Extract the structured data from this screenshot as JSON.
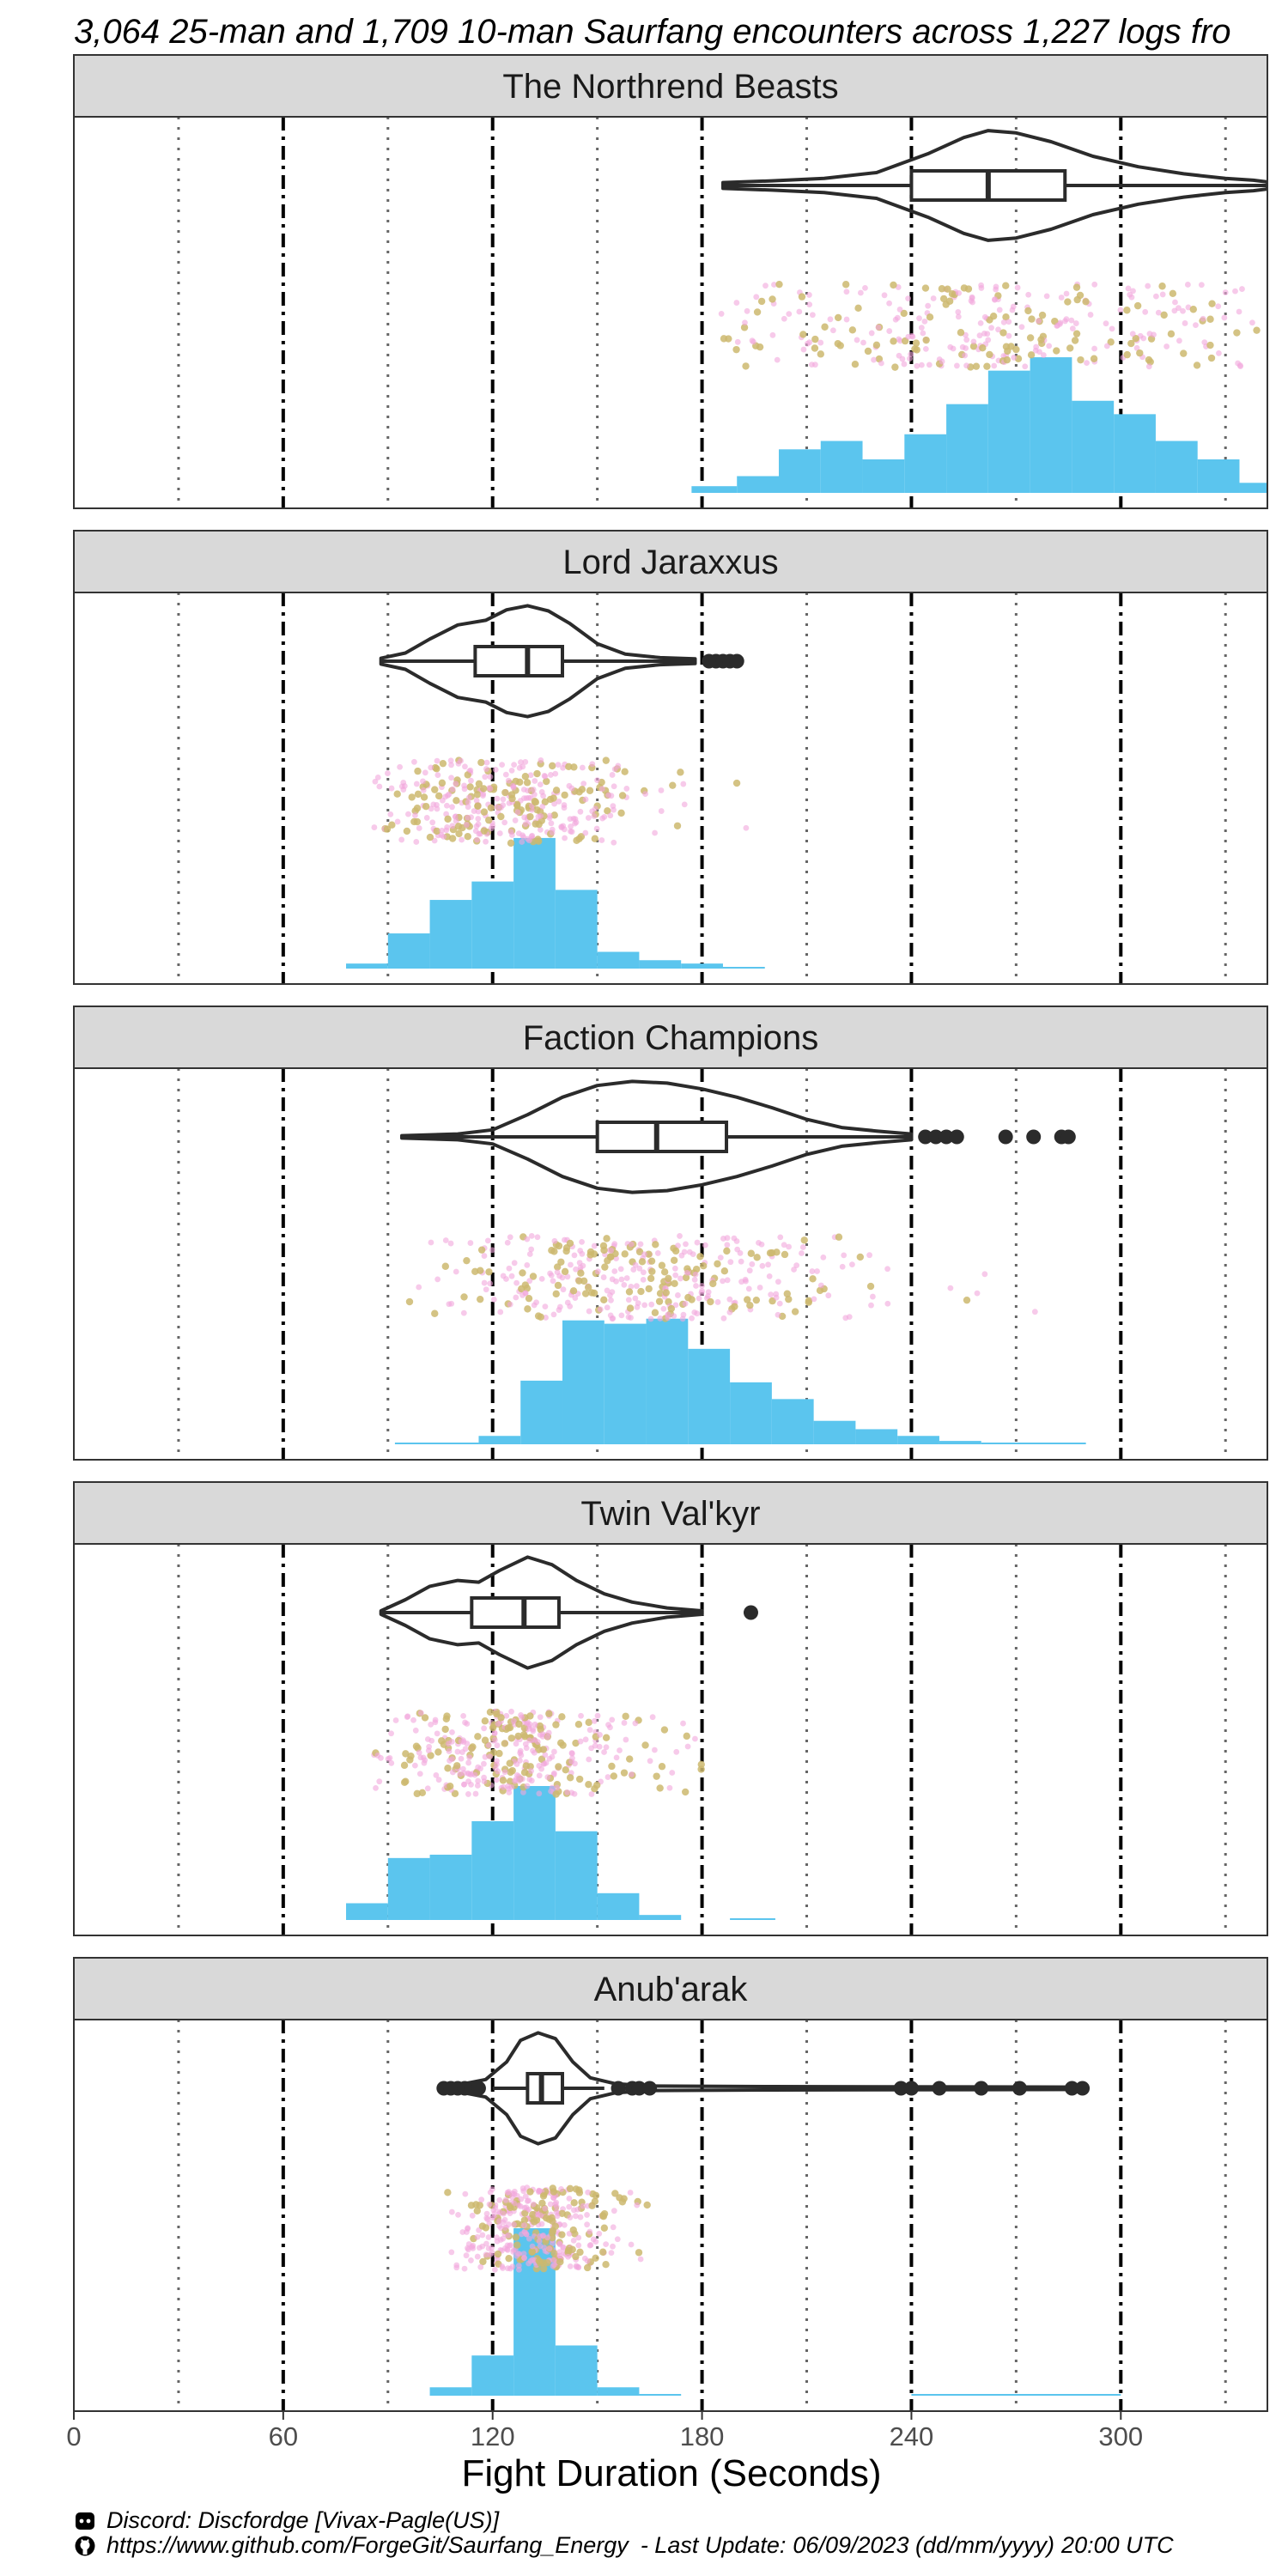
{
  "chart_data": {
    "type": "faceted-distribution",
    "title": "3,064 25-man and 1,709 10-man Saurfang encounters across 1,227 logs fro",
    "xlabel": "Fight Duration (Seconds)",
    "xlim": [
      0,
      342
    ],
    "x_ticks": [
      0,
      60,
      120,
      180,
      240,
      300
    ],
    "vlines_dashed": [
      60,
      120,
      180,
      240,
      300
    ],
    "vlines_dotted": [
      30,
      90,
      150,
      210,
      270,
      330
    ],
    "colors": {
      "histogram": "#5bc5ee",
      "jitter_25man": "#ccb86f",
      "jitter_10man": "#f2a7dc",
      "outline": "#2b2b2b",
      "strip": "#d9d9d9"
    },
    "facets": [
      {
        "name": "The Northrend Beasts",
        "hist": [
          [
            177,
            190,
            0.04
          ],
          [
            190,
            202,
            0.1
          ],
          [
            202,
            214,
            0.26
          ],
          [
            214,
            226,
            0.31
          ],
          [
            226,
            238,
            0.2
          ],
          [
            238,
            250,
            0.35
          ],
          [
            250,
            262,
            0.53
          ],
          [
            262,
            274,
            0.73
          ],
          [
            274,
            286,
            0.81
          ],
          [
            286,
            298,
            0.55
          ],
          [
            298,
            310,
            0.47
          ],
          [
            310,
            322,
            0.31
          ],
          [
            322,
            334,
            0.2
          ],
          [
            334,
            346,
            0.06
          ],
          [
            346,
            358,
            0.04
          ]
        ],
        "box": {
          "min": 186,
          "q1": 240,
          "median": 262,
          "q3": 284,
          "max": 342
        },
        "outliers": [],
        "violin": [
          [
            186,
            0.05
          ],
          [
            200,
            0.08
          ],
          [
            215,
            0.12
          ],
          [
            230,
            0.22
          ],
          [
            245,
            0.55
          ],
          [
            255,
            0.82
          ],
          [
            262,
            0.94
          ],
          [
            270,
            0.9
          ],
          [
            280,
            0.75
          ],
          [
            292,
            0.5
          ],
          [
            305,
            0.32
          ],
          [
            318,
            0.2
          ],
          [
            330,
            0.12
          ],
          [
            338,
            0.09
          ],
          [
            342,
            0.06
          ]
        ],
        "jitter_range": [
          185,
          342
        ],
        "jitter_peak": 258,
        "jitter_spread": 42,
        "jitter_n": 320
      },
      {
        "name": "Lord Jaraxxus",
        "hist": [
          [
            78,
            90,
            0.03
          ],
          [
            90,
            102,
            0.21
          ],
          [
            102,
            114,
            0.41
          ],
          [
            114,
            126,
            0.52
          ],
          [
            126,
            138,
            0.78
          ],
          [
            138,
            150,
            0.47
          ],
          [
            150,
            162,
            0.1
          ],
          [
            162,
            174,
            0.05
          ],
          [
            174,
            186,
            0.03
          ],
          [
            186,
            198,
            0.01
          ]
        ],
        "box": {
          "min": 88,
          "q1": 115,
          "median": 130,
          "q3": 140,
          "max": 178
        },
        "outliers": [
          182,
          184,
          186,
          188,
          190
        ],
        "violin": [
          [
            88,
            0.05
          ],
          [
            95,
            0.14
          ],
          [
            102,
            0.38
          ],
          [
            110,
            0.62
          ],
          [
            118,
            0.7
          ],
          [
            124,
            0.88
          ],
          [
            130,
            0.95
          ],
          [
            136,
            0.86
          ],
          [
            142,
            0.65
          ],
          [
            150,
            0.3
          ],
          [
            158,
            0.12
          ],
          [
            168,
            0.06
          ],
          [
            178,
            0.04
          ]
        ],
        "jitter_range": [
          86,
          195
        ],
        "jitter_peak": 124,
        "jitter_spread": 20,
        "jitter_n": 380
      },
      {
        "name": "Faction Champions",
        "hist": [
          [
            92,
            116,
            0.01
          ],
          [
            116,
            128,
            0.05
          ],
          [
            128,
            140,
            0.38
          ],
          [
            140,
            152,
            0.74
          ],
          [
            152,
            164,
            0.72
          ],
          [
            164,
            176,
            0.75
          ],
          [
            176,
            188,
            0.57
          ],
          [
            188,
            200,
            0.37
          ],
          [
            200,
            212,
            0.27
          ],
          [
            212,
            224,
            0.14
          ],
          [
            224,
            236,
            0.09
          ],
          [
            236,
            248,
            0.05
          ],
          [
            248,
            260,
            0.02
          ],
          [
            260,
            290,
            0.01
          ]
        ],
        "box": {
          "min": 94,
          "q1": 150,
          "median": 167,
          "q3": 187,
          "max": 240
        },
        "outliers": [
          244,
          247,
          250,
          253,
          267,
          275,
          283,
          285
        ],
        "violin": [
          [
            94,
            0.02
          ],
          [
            110,
            0.05
          ],
          [
            120,
            0.12
          ],
          [
            130,
            0.38
          ],
          [
            140,
            0.68
          ],
          [
            150,
            0.88
          ],
          [
            160,
            0.95
          ],
          [
            170,
            0.92
          ],
          [
            180,
            0.82
          ],
          [
            190,
            0.68
          ],
          [
            200,
            0.5
          ],
          [
            210,
            0.3
          ],
          [
            220,
            0.16
          ],
          [
            230,
            0.1
          ],
          [
            240,
            0.05
          ]
        ],
        "jitter_range": [
          95,
          285
        ],
        "jitter_peak": 162,
        "jitter_spread": 30,
        "jitter_n": 380
      },
      {
        "name": "Twin Val'kyr",
        "hist": [
          [
            78,
            90,
            0.1
          ],
          [
            90,
            102,
            0.37
          ],
          [
            102,
            114,
            0.39
          ],
          [
            114,
            126,
            0.59
          ],
          [
            126,
            138,
            0.8
          ],
          [
            138,
            150,
            0.53
          ],
          [
            150,
            162,
            0.16
          ],
          [
            162,
            174,
            0.03
          ],
          [
            188,
            201,
            0.01
          ]
        ],
        "box": {
          "min": 88,
          "q1": 114,
          "median": 129,
          "q3": 139,
          "max": 180
        },
        "outliers": [
          194
        ],
        "violin": [
          [
            88,
            0.03
          ],
          [
            95,
            0.22
          ],
          [
            102,
            0.45
          ],
          [
            110,
            0.55
          ],
          [
            116,
            0.52
          ],
          [
            122,
            0.72
          ],
          [
            130,
            0.95
          ],
          [
            137,
            0.82
          ],
          [
            144,
            0.55
          ],
          [
            152,
            0.32
          ],
          [
            160,
            0.18
          ],
          [
            170,
            0.08
          ],
          [
            180,
            0.03
          ]
        ],
        "jitter_range": [
          86,
          195
        ],
        "jitter_peak": 124,
        "jitter_spread": 20,
        "jitter_n": 380
      },
      {
        "name": "Anub'arak",
        "hist": [
          [
            102,
            114,
            0.05
          ],
          [
            114,
            126,
            0.24
          ],
          [
            126,
            138,
            1.0
          ],
          [
            138,
            150,
            0.3
          ],
          [
            150,
            162,
            0.05
          ],
          [
            162,
            174,
            0.01
          ],
          [
            240,
            300,
            0.004
          ]
        ],
        "box": {
          "min": 120,
          "q1": 130,
          "median": 134,
          "q3": 140,
          "max": 152
        },
        "outliers": [
          106,
          108,
          110,
          112,
          114,
          116,
          156,
          160,
          162,
          165,
          237,
          240,
          248,
          260,
          271,
          286,
          289
        ],
        "violin": [
          [
            106,
            0.05
          ],
          [
            112,
            0.08
          ],
          [
            118,
            0.15
          ],
          [
            124,
            0.45
          ],
          [
            128,
            0.82
          ],
          [
            133,
            0.95
          ],
          [
            138,
            0.85
          ],
          [
            143,
            0.45
          ],
          [
            148,
            0.18
          ],
          [
            155,
            0.08
          ],
          [
            165,
            0.04
          ],
          [
            200,
            0.03
          ],
          [
            289,
            0.02
          ]
        ],
        "jitter_range": [
          105,
          165
        ],
        "jitter_peak": 133,
        "jitter_spread": 11,
        "jitter_n": 400
      }
    ]
  },
  "footer": {
    "discord_text": "Discord: Discfordge [Vivax-Pagle(US)]",
    "github_text": "https://www.github.com/ForgeGit/Saurfang_Energy - Last Update: 06/09/2023 (dd/mm/yyyy) 20:00 UTC",
    "discord_icon": "discord-icon",
    "github_icon": "github-icon"
  }
}
